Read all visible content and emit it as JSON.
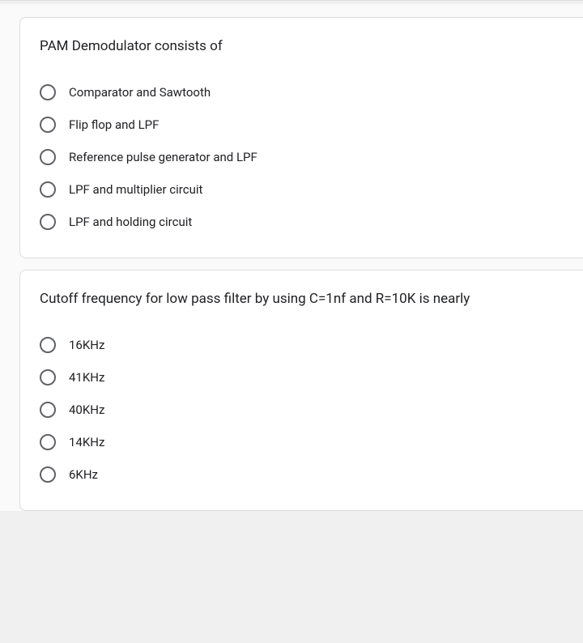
{
  "questions": [
    {
      "prompt": "PAM Demodulator consists of",
      "options": [
        "Comparator and Sawtooth",
        "Flip flop and LPF",
        "Reference pulse generator and LPF",
        "LPF and multiplier circuit",
        "LPF and holding circuit"
      ]
    },
    {
      "prompt": "Cutoff frequency for low pass filter by using C=1nf and R=10K is nearly",
      "options": [
        "16KHz",
        "41KHz",
        "40KHz",
        "14KHz",
        "6KHz"
      ]
    }
  ],
  "colors": {
    "card_bg": "#ffffff",
    "card_border": "#dadce0",
    "page_bg": "#fafafa",
    "text": "#202124",
    "radio_border": "#5f6368"
  }
}
